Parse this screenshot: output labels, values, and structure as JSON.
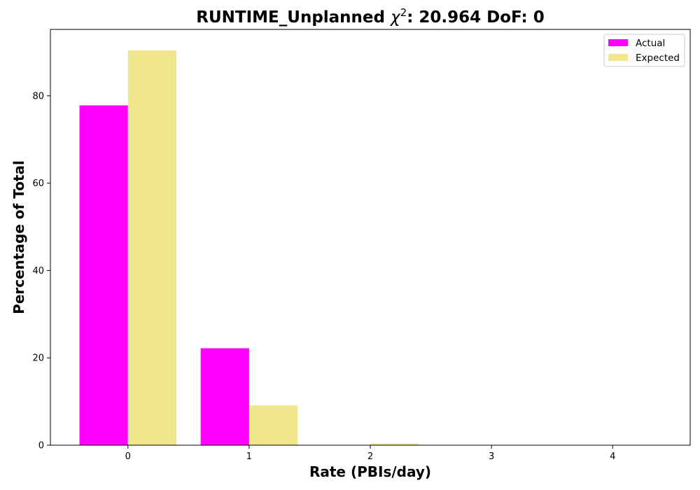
{
  "chart_data": {
    "type": "bar",
    "title_prefix": "RUNTIME_Unplanned ",
    "title_chi": "χ",
    "title_sup": "2",
    "title_suffix": ": 20.964 DoF: 0",
    "xlabel": "Rate (PBIs/day)",
    "ylabel": "Percentage of Total",
    "categories": [
      "0",
      "1",
      "2",
      "3",
      "4"
    ],
    "x": [
      0,
      1,
      2,
      3,
      4
    ],
    "xlim": [
      -0.64,
      4.64
    ],
    "ylim": [
      0,
      95.2
    ],
    "yticks": [
      "0",
      "20",
      "40",
      "60",
      "80"
    ],
    "ytick_values": [
      0,
      20,
      40,
      60,
      80
    ],
    "grid": false,
    "legend_position": "top-right",
    "series": [
      {
        "name": "Actual",
        "color": "#ff00ff",
        "values": [
          77.8,
          22.2,
          0,
          0,
          0
        ]
      },
      {
        "name": "Expected",
        "color": "#f0e68c",
        "values": [
          90.4,
          9.1,
          0.4,
          0.02,
          0
        ]
      }
    ]
  }
}
